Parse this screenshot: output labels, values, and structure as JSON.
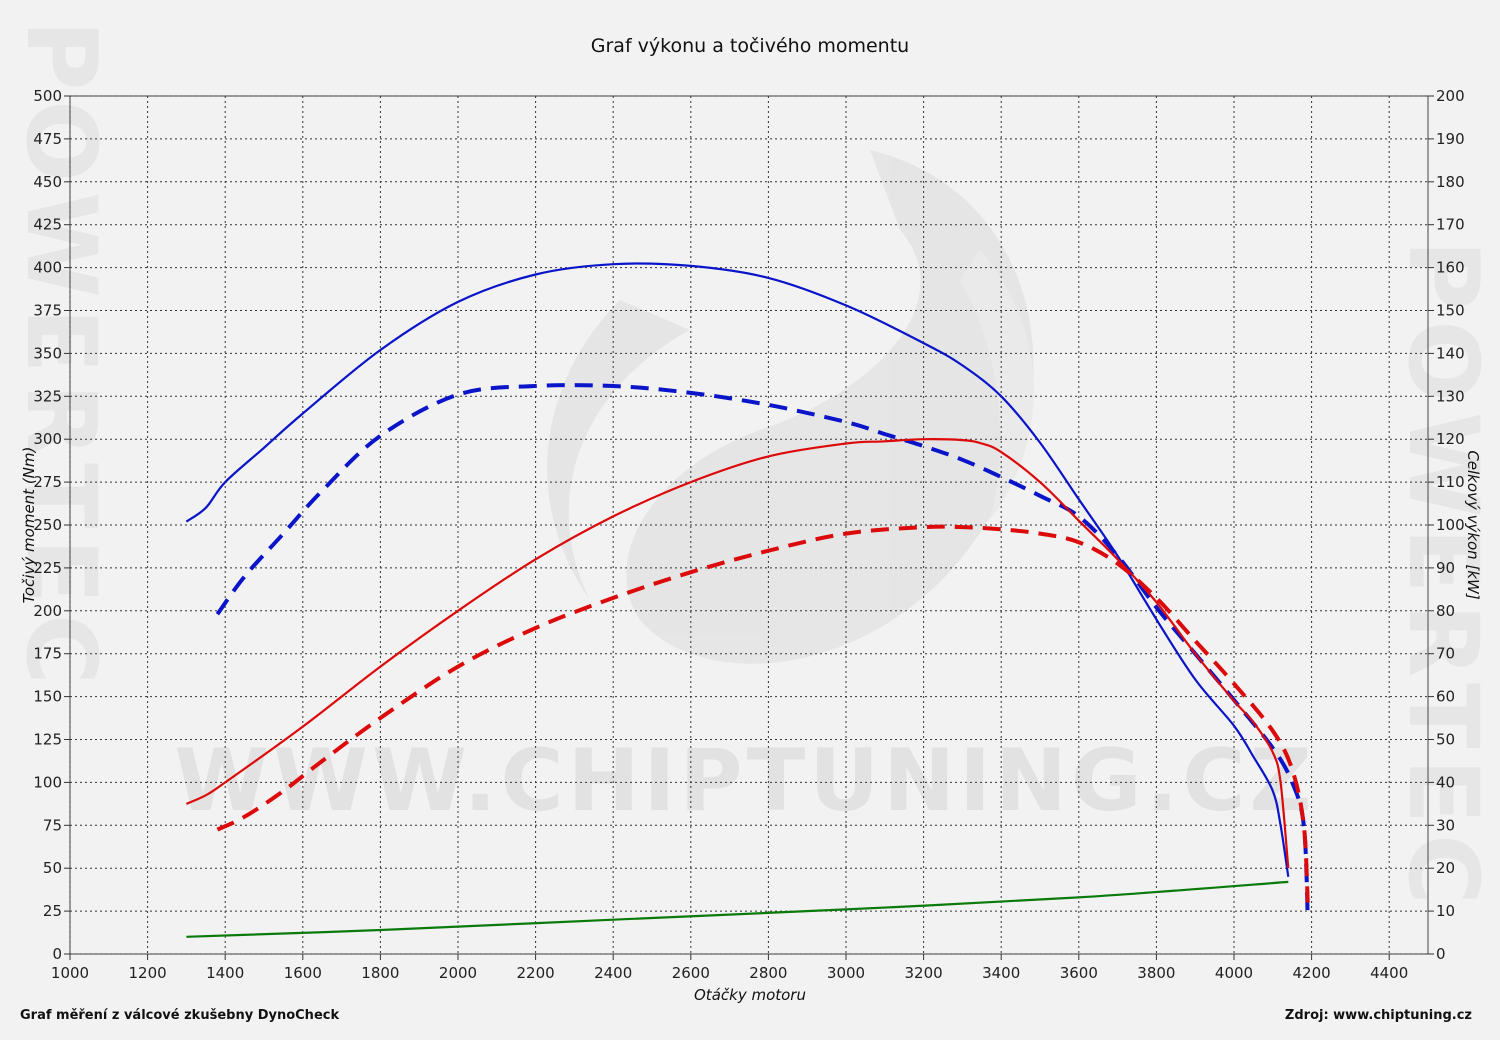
{
  "chart_data": {
    "type": "line",
    "title": "Graf výkonu a točivého momentu",
    "xlabel": "Otáčky motoru",
    "ylabel_left": "Točivý moment (Nm)",
    "ylabel_right": "Celkový výkon [kW]",
    "footer_left": "Graf měření z válcové zkušebny DynoCheck",
    "footer_right": "Zdroj: www.chiptuning.cz",
    "watermark": "WWW.CHIPTUNING.CZ",
    "side_watermark": "POWERTEC",
    "xlim": [
      1000,
      4500
    ],
    "ylim_left": [
      0,
      500
    ],
    "ylim_right": [
      0,
      200
    ],
    "grid": true,
    "x_ticks": [
      "1000",
      "1200",
      "1400",
      "1600",
      "1800",
      "2000",
      "2200",
      "2400",
      "2600",
      "2800",
      "3000",
      "3200",
      "3400",
      "3600",
      "3800",
      "4000",
      "4200",
      "4400"
    ],
    "y_left_ticks": [
      "0",
      "25",
      "50",
      "75",
      "100",
      "125",
      "150",
      "175",
      "200",
      "225",
      "250",
      "275",
      "300",
      "325",
      "350",
      "375",
      "400",
      "425",
      "450",
      "475",
      "500"
    ],
    "y_right_ticks": [
      "0",
      "10",
      "20",
      "30",
      "40",
      "50",
      "60",
      "70",
      "80",
      "90",
      "100",
      "110",
      "120",
      "130",
      "140",
      "150",
      "160",
      "170",
      "180",
      "190",
      "200"
    ],
    "series": [
      {
        "axis": "left",
        "color": "#0a14c8",
        "dashed": false,
        "x": [
          1300,
          1350,
          1400,
          1500,
          1600,
          1800,
          2000,
          2200,
          2400,
          2600,
          2800,
          3000,
          3200,
          3300,
          3400,
          3500,
          3600,
          3700,
          3800,
          3900,
          4000,
          4050,
          4100,
          4120,
          4140
        ],
        "y": [
          252,
          260,
          275,
          295,
          315,
          352,
          380,
          396,
          402,
          401,
          394,
          378,
          356,
          343,
          325,
          298,
          265,
          232,
          195,
          160,
          133,
          115,
          95,
          75,
          45
        ]
      },
      {
        "axis": "left",
        "color": "#0a14c8",
        "dashed": true,
        "x": [
          1380,
          1450,
          1550,
          1650,
          1800,
          2000,
          2200,
          2400,
          2600,
          2800,
          3000,
          3100,
          3200,
          3300,
          3400,
          3500,
          3600,
          3700,
          3800,
          3900,
          4000,
          4100,
          4150,
          4180,
          4190
        ],
        "y": [
          198,
          220,
          245,
          270,
          302,
          326,
          331,
          331,
          327,
          320,
          310,
          303,
          296,
          288,
          278,
          267,
          255,
          232,
          202,
          175,
          148,
          120,
          100,
          75,
          22
        ]
      },
      {
        "axis": "right",
        "color": "#dc0a0a",
        "dashed": false,
        "x": [
          1300,
          1350,
          1400,
          1600,
          1800,
          2000,
          2200,
          2400,
          2600,
          2800,
          3000,
          3100,
          3200,
          3300,
          3350,
          3400,
          3500,
          3600,
          3700,
          3800,
          3900,
          4000,
          4050,
          4100,
          4120,
          4140
        ],
        "y": [
          35,
          37,
          40,
          53,
          67,
          80,
          92,
          102,
          110,
          116,
          119,
          119.5,
          120,
          119.8,
          119,
          117,
          110,
          101,
          92,
          82,
          70,
          59,
          54,
          47,
          40,
          20
        ]
      },
      {
        "axis": "right",
        "color": "#dc0a0a",
        "dashed": true,
        "x": [
          1380,
          1450,
          1550,
          1650,
          1800,
          2000,
          2200,
          2400,
          2600,
          2800,
          3000,
          3200,
          3300,
          3400,
          3500,
          3600,
          3700,
          3800,
          3900,
          4000,
          4100,
          4150,
          4180,
          4190
        ],
        "y": [
          29,
          32,
          38,
          45,
          55,
          67,
          76,
          83,
          89,
          94,
          98,
          99.5,
          99.5,
          99,
          98,
          96,
          91,
          83,
          73,
          63,
          52,
          43,
          30,
          12
        ]
      },
      {
        "axis": "left",
        "color": "#0a7a0a",
        "dashed": false,
        "x": [
          1300,
          1800,
          2400,
          3000,
          3600,
          4140
        ],
        "y": [
          10,
          14,
          20,
          26,
          33,
          42
        ]
      }
    ]
  }
}
